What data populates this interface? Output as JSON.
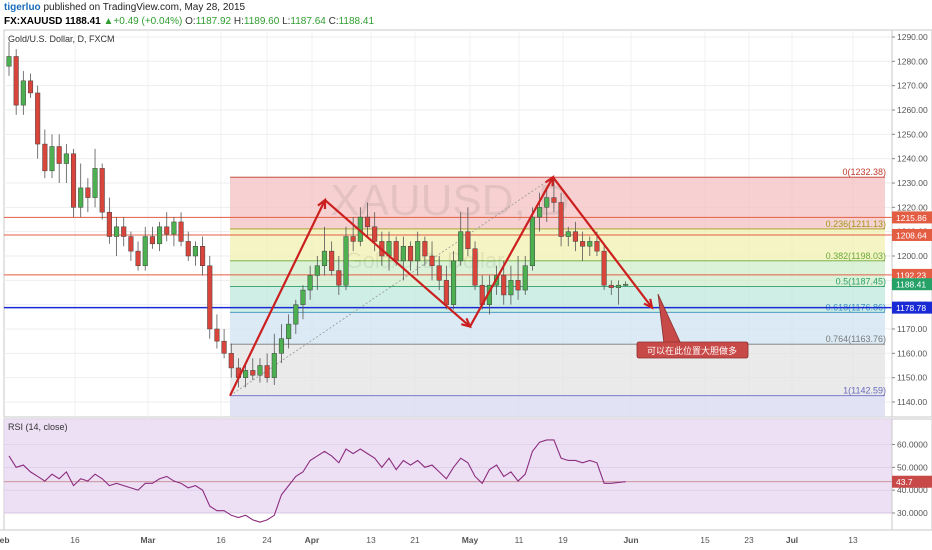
{
  "header": {
    "author": "tigerluo",
    "published": "published on TradingView.com, May 28, 2015",
    "symbol": "FX:XAUUSD",
    "last": "1188.41",
    "change_arrow": "▲",
    "change": "+0.49 (+0.04%)",
    "o_label": "O:",
    "o": "1187.92",
    "h_label": "H:",
    "h": "1189.60",
    "l_label": "L:",
    "l": "1187.64",
    "c_label": "C:",
    "c": "1188.41"
  },
  "main_pane": {
    "title": "Gold/U.S. Dollar, D, FXCM",
    "watermark": "XAUUSD, D",
    "watermark_sub": "Gold/U.S. Dollar",
    "annotation": "可以在此位置大胆做多"
  },
  "rsi_pane": {
    "title": "RSI (14, close)"
  },
  "chart_data": [
    {
      "type": "candlestick",
      "title": "Gold/U.S. Dollar, D, FXCM",
      "ylim": [
        1135,
        1295
      ],
      "price_ticks": [
        1140,
        1150,
        1160,
        1170,
        1180,
        1190,
        1200,
        1210,
        1220,
        1230,
        1240,
        1250,
        1260,
        1270,
        1280,
        1290
      ],
      "price_tick_labels": [
        "1140.00",
        "1150.00",
        "1160.00",
        "1170.00",
        "1180.00",
        "1190.00",
        "1200.00",
        "1210.00",
        "1220.00",
        "1230.00",
        "1240.00",
        "1250.00",
        "1260.00",
        "1270.00",
        "1280.00",
        "1290.00"
      ],
      "x_tick_labels": [
        "Feb",
        "16",
        "Mar",
        "16",
        "24",
        "Apr",
        "13",
        "21",
        "May",
        "11",
        "19",
        "Jun",
        "15",
        "23",
        "Jul",
        "13"
      ],
      "grid": true,
      "candles_ohlc": [
        [
          1278,
          1288,
          1274,
          1282
        ],
        [
          1282,
          1285,
          1258,
          1262
        ],
        [
          1262,
          1276,
          1258,
          1272
        ],
        [
          1272,
          1275,
          1265,
          1267
        ],
        [
          1267,
          1270,
          1240,
          1246
        ],
        [
          1246,
          1252,
          1232,
          1235
        ],
        [
          1235,
          1250,
          1232,
          1245
        ],
        [
          1245,
          1250,
          1230,
          1238
        ],
        [
          1238,
          1246,
          1230,
          1242
        ],
        [
          1242,
          1244,
          1216,
          1220
        ],
        [
          1220,
          1238,
          1216,
          1228
        ],
        [
          1228,
          1232,
          1218,
          1224
        ],
        [
          1224,
          1244,
          1220,
          1236
        ],
        [
          1236,
          1238,
          1215,
          1218
        ],
        [
          1218,
          1224,
          1205,
          1208
        ],
        [
          1208,
          1216,
          1200,
          1212
        ],
        [
          1212,
          1216,
          1204,
          1208
        ],
        [
          1208,
          1210,
          1198,
          1202
        ],
        [
          1202,
          1206,
          1194,
          1196
        ],
        [
          1196,
          1212,
          1194,
          1208
        ],
        [
          1208,
          1212,
          1203,
          1205
        ],
        [
          1205,
          1214,
          1202,
          1212
        ],
        [
          1212,
          1218,
          1206,
          1209
        ],
        [
          1209,
          1216,
          1204,
          1214
        ],
        [
          1214,
          1218,
          1204,
          1206
        ],
        [
          1206,
          1210,
          1198,
          1200
        ],
        [
          1200,
          1206,
          1196,
          1204
        ],
        [
          1204,
          1208,
          1192,
          1196
        ],
        [
          1196,
          1200,
          1166,
          1170
        ],
        [
          1170,
          1176,
          1162,
          1165
        ],
        [
          1165,
          1170,
          1158,
          1160
        ],
        [
          1160,
          1164,
          1150,
          1154
        ],
        [
          1154,
          1158,
          1146,
          1150
        ],
        [
          1150,
          1156,
          1146,
          1153
        ],
        [
          1153,
          1158,
          1149,
          1151
        ],
        [
          1151,
          1158,
          1148,
          1155
        ],
        [
          1155,
          1160,
          1148,
          1150
        ],
        [
          1150,
          1168,
          1147,
          1160
        ],
        [
          1160,
          1172,
          1156,
          1166
        ],
        [
          1166,
          1176,
          1162,
          1172
        ],
        [
          1172,
          1182,
          1168,
          1180
        ],
        [
          1180,
          1188,
          1174,
          1186
        ],
        [
          1186,
          1196,
          1182,
          1192
        ],
        [
          1192,
          1200,
          1186,
          1196
        ],
        [
          1196,
          1212,
          1192,
          1202
        ],
        [
          1202,
          1206,
          1192,
          1194
        ],
        [
          1194,
          1200,
          1184,
          1188
        ],
        [
          1188,
          1212,
          1186,
          1208
        ],
        [
          1208,
          1216,
          1202,
          1206
        ],
        [
          1206,
          1220,
          1204,
          1216
        ],
        [
          1216,
          1222,
          1208,
          1212
        ],
        [
          1212,
          1218,
          1202,
          1206
        ],
        [
          1206,
          1210,
          1196,
          1200
        ],
        [
          1200,
          1210,
          1194,
          1206
        ],
        [
          1206,
          1208,
          1196,
          1198
        ],
        [
          1198,
          1208,
          1190,
          1204
        ],
        [
          1204,
          1206,
          1194,
          1198
        ],
        [
          1198,
          1210,
          1192,
          1206
        ],
        [
          1206,
          1208,
          1196,
          1200
        ],
        [
          1200,
          1206,
          1190,
          1196
        ],
        [
          1196,
          1200,
          1186,
          1190
        ],
        [
          1190,
          1196,
          1178,
          1180
        ],
        [
          1180,
          1202,
          1178,
          1198
        ],
        [
          1198,
          1218,
          1196,
          1210
        ],
        [
          1210,
          1220,
          1200,
          1203
        ],
        [
          1203,
          1206,
          1186,
          1188
        ],
        [
          1188,
          1192,
          1178,
          1180
        ],
        [
          1180,
          1192,
          1176,
          1188
        ],
        [
          1188,
          1196,
          1184,
          1192
        ],
        [
          1192,
          1198,
          1180,
          1184
        ],
        [
          1184,
          1196,
          1180,
          1190
        ],
        [
          1190,
          1200,
          1182,
          1186
        ],
        [
          1186,
          1200,
          1184,
          1196
        ],
        [
          1196,
          1220,
          1194,
          1216
        ],
        [
          1216,
          1226,
          1210,
          1220
        ],
        [
          1220,
          1228,
          1214,
          1224
        ],
        [
          1224,
          1232,
          1218,
          1222
        ],
        [
          1222,
          1226,
          1204,
          1208
        ],
        [
          1208,
          1212,
          1204,
          1210
        ],
        [
          1210,
          1214,
          1202,
          1206
        ],
        [
          1206,
          1210,
          1198,
          1204
        ],
        [
          1204,
          1208,
          1200,
          1206
        ],
        [
          1206,
          1210,
          1200,
          1202
        ],
        [
          1202,
          1204,
          1186,
          1188
        ],
        [
          1188,
          1190,
          1184,
          1187
        ],
        [
          1187,
          1190,
          1180,
          1188
        ],
        [
          1187.92,
          1189.6,
          1187.64,
          1188.41
        ]
      ],
      "fibonacci": {
        "levels": [
          {
            "ratio": "0",
            "price": 1232.38,
            "label": "0(1232.38)"
          },
          {
            "ratio": "0.236",
            "price": 1211.13,
            "label": "0.236(1211.13)"
          },
          {
            "ratio": "0.382",
            "price": 1198.03,
            "label": "0.382(1198.03)"
          },
          {
            "ratio": "0.5",
            "price": 1187.45,
            "label": "0.5(1187.45)"
          },
          {
            "ratio": "0.618",
            "price": 1176.86,
            "label": "0.618(1176.86)"
          },
          {
            "ratio": "0.764",
            "price": 1163.76,
            "label": "0.764(1163.76)"
          },
          {
            "ratio": "1",
            "price": 1142.59,
            "label": "1(1142.59)"
          }
        ],
        "zone_colors": [
          "#f4c2c2",
          "#f0f0b0",
          "#cfeecb",
          "#bfe8dc",
          "#cfe3f2",
          "#e3e3e3",
          "#d9dcf2"
        ],
        "line_colors": [
          "#c0392b",
          "#9c9a1c",
          "#6aaa3a",
          "#2e9e6e",
          "#3a8fc2",
          "#7a7a7a",
          "#6a6ac2"
        ]
      },
      "horizontal_lines": [
        {
          "price": 1215.86,
          "color": "#e35d43",
          "label": "1215.86"
        },
        {
          "price": 1208.64,
          "color": "#e35d43",
          "label": "1208.64"
        },
        {
          "price": 1192.23,
          "color": "#e35d43",
          "label": "1192.23"
        },
        {
          "price": 1178.78,
          "color": "#1a2bd6",
          "label": "1178.78"
        }
      ],
      "current_price": {
        "price": 1188.41,
        "label": "1188.41",
        "color": "#26a269"
      },
      "pattern_lines": [
        {
          "from": [
            "Mar 17",
            1142.59
          ],
          "to": [
            "Apr 6",
            1223
          ]
        },
        {
          "from": [
            "Apr 6",
            1223
          ],
          "to": [
            "May 1",
            1171
          ]
        },
        {
          "from": [
            "May 1",
            1171
          ],
          "to": [
            "May 18",
            1232.38
          ]
        },
        {
          "from": [
            "May 18",
            1232.38
          ],
          "to": [
            "Jun 5",
            1178.78
          ]
        }
      ],
      "colors": {
        "up": "#4caf50",
        "down": "#d9443b",
        "pattern": "#cc1f1f",
        "callout": "#c84a48"
      }
    },
    {
      "type": "line",
      "title": "RSI (14, close)",
      "ylim": [
        24,
        64
      ],
      "y_ticks": [
        30,
        40,
        50,
        60
      ],
      "y_tick_labels": [
        "30.0000",
        "40.0000",
        "50.0000",
        "60.0000"
      ],
      "band": [
        30,
        70
      ],
      "current": {
        "value": 43.7,
        "label": "43.7"
      },
      "series": [
        {
          "values": [
            55,
            50,
            51,
            48,
            46,
            44,
            47,
            45,
            48,
            42,
            45,
            44,
            47,
            45,
            42,
            43,
            42,
            41,
            40,
            43,
            43,
            45,
            46,
            44,
            43,
            41,
            42,
            40,
            33,
            31,
            31,
            29,
            28,
            29,
            27,
            26,
            27,
            29,
            38,
            42,
            46,
            48,
            53,
            55,
            57,
            55,
            52,
            58,
            56,
            58,
            56,
            54,
            50,
            54,
            49,
            53,
            51,
            53,
            50,
            51,
            48,
            45,
            50,
            54,
            52,
            46,
            43,
            49,
            51,
            46,
            48,
            44,
            47,
            57,
            61,
            62,
            62,
            54,
            53,
            53,
            52,
            53,
            52,
            43,
            43,
            43.4,
            43.7
          ],
          "color": "#8b2d7e"
        }
      ]
    }
  ]
}
